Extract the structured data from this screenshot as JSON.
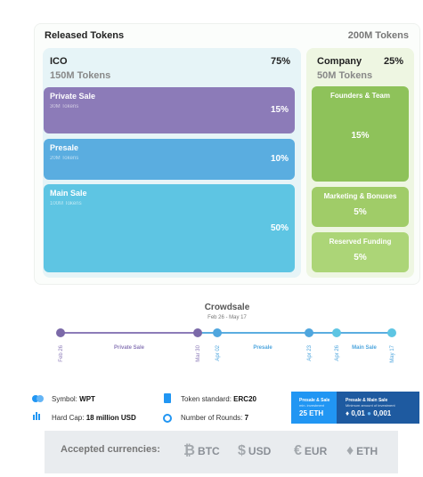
{
  "header": {
    "title": "Released Tokens",
    "total": "200M Tokens"
  },
  "ico": {
    "name": "ICO",
    "percent": "75%",
    "tokens": "150M Tokens",
    "segments": [
      {
        "name": "Private Sale",
        "tokens": "30M Tokens",
        "percent": "15%"
      },
      {
        "name": "Presale",
        "tokens": "20M Tokens",
        "percent": "10%"
      },
      {
        "name": "Main Sale",
        "tokens": "100M Tokens",
        "percent": "50%"
      }
    ]
  },
  "company": {
    "name": "Company",
    "percent": "25%",
    "tokens": "50M Tokens",
    "segments": [
      {
        "name": "Founders & Team",
        "percent": "15%"
      },
      {
        "name": "Marketing & Bonuses",
        "percent": "5%"
      },
      {
        "name": "Reserved Funding",
        "percent": "5%"
      }
    ]
  },
  "timeline": {
    "title": "Crowdsale",
    "dates": "Feb 26 - May 17",
    "ticks": [
      "Feb 26",
      "Mar 30",
      "Apr 02",
      "Apr 23",
      "Apr 26",
      "May 17"
    ],
    "phases": [
      "Private Sale",
      "Presale",
      "Main Sale"
    ]
  },
  "info": {
    "symbol": {
      "label": "Symbol:",
      "value": "WPT"
    },
    "hard_cap": {
      "label": "Hard Cap:",
      "value": "18 million USD"
    },
    "standard": {
      "label": "Token standard:",
      "value": "ERC20"
    },
    "rounds": {
      "label": "Number of Rounds:",
      "value": "7"
    }
  },
  "prices": [
    {
      "title": "Presale & Sale",
      "subtitle": "min. investment",
      "values": [
        "25 ETH"
      ]
    },
    {
      "title": "Presale & Main Sale",
      "subtitle": "Minimum amount of investment",
      "values": [
        "0,01",
        "0,001"
      ]
    }
  ],
  "currencies": {
    "label": "Accepted currencies:",
    "items": [
      {
        "symbol": "₿",
        "code": "BTC"
      },
      {
        "symbol": "$",
        "code": "USD"
      },
      {
        "symbol": "€",
        "code": "EUR"
      },
      {
        "symbol": "♦",
        "code": "ETH"
      }
    ]
  }
}
